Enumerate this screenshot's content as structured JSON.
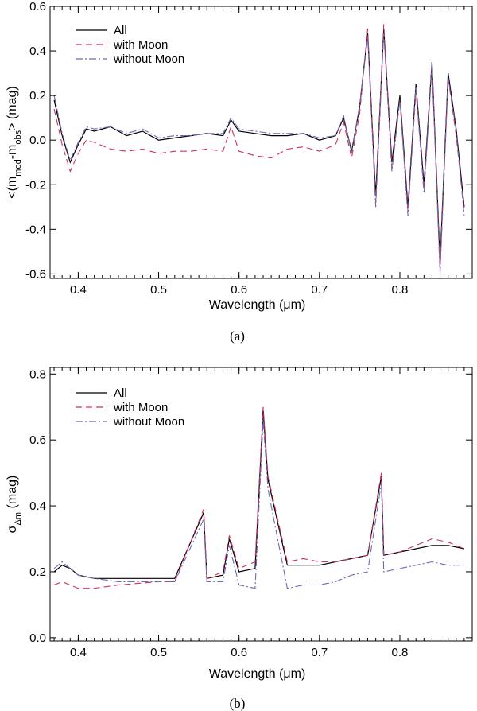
{
  "colors": {
    "all": "#000000",
    "with_moon": "#d0305c",
    "without_moon": "#6a6ab8"
  },
  "chart_data": [
    {
      "type": "line",
      "panel_label": "(a)",
      "xlabel": "Wavelength (μm)",
      "ylabel_parts": {
        "main": "<(m",
        "sub1": "mod",
        "mid": "-m",
        "sub2": "obs",
        "tail": "> (mag)"
      },
      "xlim": [
        0.365,
        0.89
      ],
      "ylim": [
        -0.62,
        0.6
      ],
      "xticks": [
        "0.4",
        "0.5",
        "0.6",
        "0.7",
        "0.8"
      ],
      "yticks": [
        "-0.6",
        "-0.4",
        "-0.2",
        "0.0",
        "0.2",
        "0.4",
        "0.6"
      ],
      "legend": [
        "All",
        "with Moon",
        "without Moon"
      ],
      "series": [
        {
          "name": "All",
          "x": [
            0.37,
            0.38,
            0.39,
            0.4,
            0.41,
            0.42,
            0.44,
            0.46,
            0.48,
            0.5,
            0.52,
            0.54,
            0.56,
            0.58,
            0.59,
            0.6,
            0.62,
            0.64,
            0.66,
            0.68,
            0.7,
            0.72,
            0.73,
            0.74,
            0.75,
            0.76,
            0.77,
            0.78,
            0.79,
            0.8,
            0.81,
            0.82,
            0.83,
            0.84,
            0.85,
            0.86,
            0.87,
            0.88
          ],
          "y": [
            0.18,
            0.02,
            -0.1,
            -0.02,
            0.05,
            0.04,
            0.06,
            0.02,
            0.04,
            0.0,
            0.01,
            0.02,
            0.03,
            0.02,
            0.09,
            0.04,
            0.03,
            0.02,
            0.02,
            0.03,
            0.0,
            0.02,
            0.1,
            -0.05,
            0.15,
            0.48,
            -0.25,
            0.5,
            -0.1,
            0.2,
            -0.3,
            0.25,
            -0.2,
            0.35,
            -0.55,
            0.3,
            0.05,
            -0.3
          ]
        },
        {
          "name": "with Moon",
          "x": [
            0.37,
            0.38,
            0.39,
            0.4,
            0.41,
            0.42,
            0.44,
            0.46,
            0.48,
            0.5,
            0.52,
            0.54,
            0.56,
            0.58,
            0.59,
            0.6,
            0.62,
            0.64,
            0.66,
            0.68,
            0.7,
            0.72,
            0.73,
            0.74,
            0.75,
            0.76,
            0.77,
            0.78,
            0.79,
            0.8,
            0.81,
            0.82,
            0.83,
            0.84,
            0.85,
            0.86,
            0.87,
            0.88
          ],
          "y": [
            0.14,
            -0.02,
            -0.14,
            -0.06,
            0.0,
            -0.01,
            -0.04,
            -0.05,
            -0.04,
            -0.06,
            -0.05,
            -0.05,
            -0.04,
            -0.05,
            0.06,
            -0.05,
            -0.07,
            -0.08,
            -0.04,
            -0.03,
            -0.05,
            -0.02,
            0.08,
            -0.08,
            0.12,
            0.5,
            -0.28,
            0.52,
            -0.12,
            0.18,
            -0.32,
            0.22,
            -0.22,
            0.33,
            -0.58,
            0.28,
            0.02,
            -0.32
          ]
        },
        {
          "name": "without Moon",
          "x": [
            0.37,
            0.38,
            0.39,
            0.4,
            0.41,
            0.42,
            0.44,
            0.46,
            0.48,
            0.5,
            0.52,
            0.54,
            0.56,
            0.58,
            0.59,
            0.6,
            0.62,
            0.64,
            0.66,
            0.68,
            0.7,
            0.72,
            0.73,
            0.74,
            0.75,
            0.76,
            0.77,
            0.78,
            0.79,
            0.8,
            0.81,
            0.82,
            0.83,
            0.84,
            0.85,
            0.86,
            0.87,
            0.88
          ],
          "y": [
            0.2,
            0.03,
            -0.09,
            -0.01,
            0.06,
            0.05,
            0.06,
            0.03,
            0.05,
            0.01,
            0.02,
            0.02,
            0.03,
            0.03,
            0.1,
            0.05,
            0.04,
            0.03,
            0.03,
            0.03,
            0.01,
            0.02,
            0.11,
            -0.06,
            0.16,
            0.46,
            -0.3,
            0.48,
            -0.14,
            0.18,
            -0.34,
            0.24,
            -0.24,
            0.34,
            -0.6,
            0.28,
            0.04,
            -0.34
          ]
        }
      ]
    },
    {
      "type": "line",
      "panel_label": "(b)",
      "xlabel": "Wavelength (μm)",
      "ylabel_parts": {
        "main": "σ",
        "sub": "Δm",
        "tail": " (mag)"
      },
      "xlim": [
        0.365,
        0.89
      ],
      "ylim": [
        -0.01,
        0.82
      ],
      "xticks": [
        "0.4",
        "0.5",
        "0.6",
        "0.7",
        "0.8"
      ],
      "yticks": [
        "0.0",
        "0.2",
        "0.4",
        "0.6",
        "0.8"
      ],
      "legend": [
        "All",
        "with Moon",
        "without Moon"
      ],
      "series": [
        {
          "name": "All",
          "x": [
            0.37,
            0.38,
            0.39,
            0.4,
            0.42,
            0.45,
            0.5,
            0.52,
            0.556,
            0.56,
            0.58,
            0.588,
            0.6,
            0.62,
            0.63,
            0.636,
            0.66,
            0.68,
            0.7,
            0.72,
            0.74,
            0.76,
            0.777,
            0.78,
            0.8,
            0.82,
            0.84,
            0.86,
            0.88
          ],
          "y": [
            0.2,
            0.22,
            0.21,
            0.19,
            0.18,
            0.18,
            0.18,
            0.18,
            0.38,
            0.18,
            0.19,
            0.3,
            0.2,
            0.21,
            0.69,
            0.48,
            0.22,
            0.22,
            0.22,
            0.23,
            0.24,
            0.25,
            0.49,
            0.25,
            0.26,
            0.27,
            0.28,
            0.28,
            0.27
          ]
        },
        {
          "name": "with Moon",
          "x": [
            0.37,
            0.38,
            0.39,
            0.4,
            0.42,
            0.45,
            0.5,
            0.52,
            0.556,
            0.56,
            0.58,
            0.588,
            0.6,
            0.62,
            0.63,
            0.636,
            0.66,
            0.68,
            0.7,
            0.72,
            0.74,
            0.76,
            0.777,
            0.78,
            0.8,
            0.82,
            0.84,
            0.86,
            0.88
          ],
          "y": [
            0.16,
            0.17,
            0.16,
            0.15,
            0.15,
            0.16,
            0.17,
            0.17,
            0.39,
            0.18,
            0.2,
            0.31,
            0.21,
            0.23,
            0.7,
            0.49,
            0.23,
            0.24,
            0.23,
            0.23,
            0.24,
            0.25,
            0.5,
            0.25,
            0.26,
            0.28,
            0.3,
            0.29,
            0.27
          ]
        },
        {
          "name": "without Moon",
          "x": [
            0.37,
            0.38,
            0.39,
            0.4,
            0.42,
            0.45,
            0.5,
            0.52,
            0.556,
            0.56,
            0.58,
            0.588,
            0.6,
            0.62,
            0.63,
            0.636,
            0.66,
            0.68,
            0.7,
            0.72,
            0.74,
            0.76,
            0.777,
            0.78,
            0.8,
            0.82,
            0.84,
            0.86,
            0.88
          ],
          "y": [
            0.21,
            0.23,
            0.21,
            0.19,
            0.18,
            0.17,
            0.17,
            0.17,
            0.36,
            0.17,
            0.17,
            0.28,
            0.16,
            0.15,
            0.66,
            0.45,
            0.15,
            0.16,
            0.16,
            0.17,
            0.19,
            0.2,
            0.47,
            0.2,
            0.21,
            0.22,
            0.23,
            0.22,
            0.22
          ]
        }
      ]
    }
  ]
}
